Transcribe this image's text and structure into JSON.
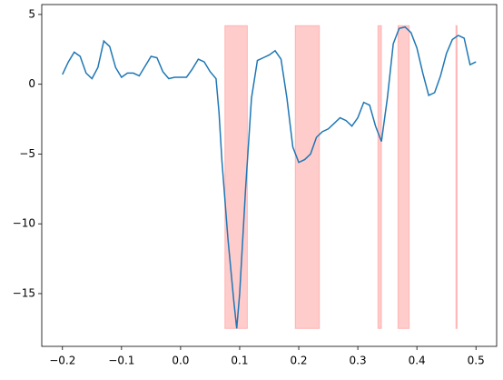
{
  "chart_data": {
    "type": "line",
    "x": [
      -0.2,
      -0.19,
      -0.18,
      -0.17,
      -0.16,
      -0.15,
      -0.14,
      -0.13,
      -0.12,
      -0.11,
      -0.1,
      -0.09,
      -0.08,
      -0.07,
      -0.06,
      -0.05,
      -0.04,
      -0.03,
      -0.02,
      -0.01,
      0.0,
      0.01,
      0.02,
      0.03,
      0.04,
      0.05,
      0.06,
      0.065,
      0.07,
      0.08,
      0.09,
      0.095,
      0.1,
      0.11,
      0.12,
      0.13,
      0.14,
      0.15,
      0.16,
      0.17,
      0.18,
      0.19,
      0.2,
      0.21,
      0.22,
      0.23,
      0.24,
      0.25,
      0.26,
      0.27,
      0.28,
      0.29,
      0.3,
      0.31,
      0.32,
      0.33,
      0.34,
      0.35,
      0.36,
      0.37,
      0.38,
      0.39,
      0.4,
      0.41,
      0.42,
      0.43,
      0.44,
      0.45,
      0.46,
      0.47,
      0.48,
      0.49,
      0.5
    ],
    "series": [
      {
        "color": "#1f77b4",
        "values": [
          0.7,
          1.6,
          2.3,
          2.0,
          0.8,
          0.4,
          1.2,
          3.1,
          2.7,
          1.2,
          0.5,
          0.8,
          0.8,
          0.6,
          1.3,
          2.0,
          1.9,
          0.9,
          0.4,
          0.5,
          0.5,
          0.5,
          1.1,
          1.8,
          1.6,
          0.9,
          0.4,
          -2.0,
          -5.5,
          -11.0,
          -15.5,
          -17.5,
          -15.0,
          -7.5,
          -1.0,
          1.7,
          1.9,
          2.1,
          2.4,
          1.8,
          -1.0,
          -4.5,
          -5.6,
          -5.4,
          -5.0,
          -3.8,
          -3.4,
          -3.2,
          -2.8,
          -2.4,
          -2.6,
          -3.0,
          -2.4,
          -1.3,
          -1.5,
          -3.0,
          -4.1,
          -1.0,
          2.9,
          4.0,
          4.1,
          3.7,
          2.6,
          0.8,
          -0.8,
          -0.6,
          0.6,
          2.2,
          3.2,
          3.5,
          3.3,
          1.4,
          1.6
        ]
      }
    ],
    "spans": [
      [
        0.075,
        0.113
      ],
      [
        0.194,
        0.235
      ],
      [
        0.334,
        0.34
      ],
      [
        0.368,
        0.387
      ],
      [
        0.466,
        0.468
      ]
    ],
    "span_ylim": [
      -17.5,
      4.2
    ],
    "span_color": "#ff0000",
    "xlim": [
      -0.235,
      0.535
    ],
    "ylim": [
      -18.78,
      5.71
    ],
    "xticks": [
      {
        "value": -0.2,
        "label": "−0.2"
      },
      {
        "value": -0.1,
        "label": "−0.1"
      },
      {
        "value": 0.0,
        "label": "0.0"
      },
      0.1,
      0.2,
      0.3,
      0.4,
      0.5
    ],
    "yticks": [
      {
        "value": -15,
        "label": "−15"
      },
      {
        "value": -10,
        "label": "−10"
      },
      {
        "value": -5,
        "label": "−5"
      },
      0,
      5
    ]
  }
}
